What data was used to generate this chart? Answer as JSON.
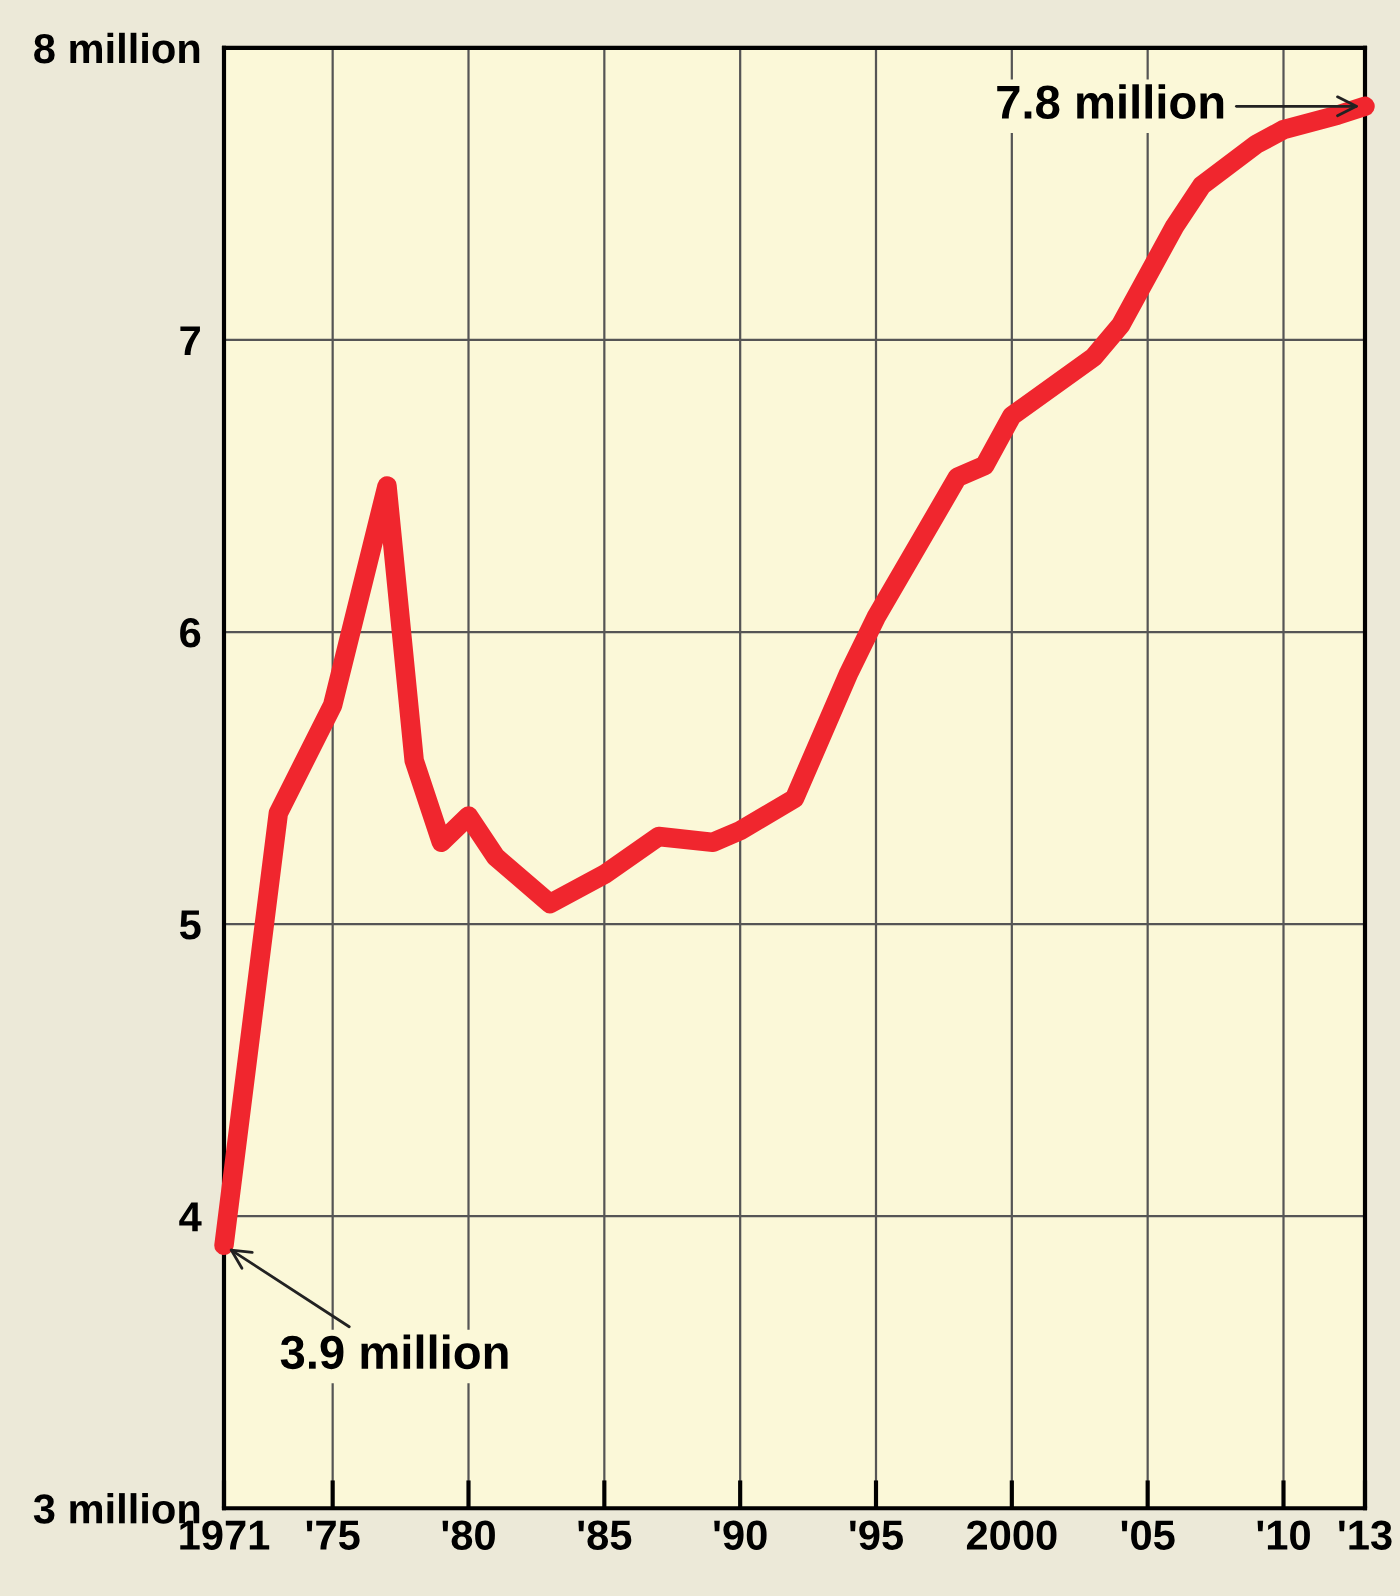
{
  "chart_data": {
    "type": "line",
    "x": [
      1971,
      1973,
      1975,
      1977,
      1978,
      1979,
      1980,
      1981,
      1983,
      1985,
      1987,
      1989,
      1990,
      1992,
      1994,
      1995,
      1998,
      1999,
      2000,
      2003,
      2004,
      2006,
      2007,
      2009,
      2010,
      2012,
      2013
    ],
    "series": [
      {
        "color": "#f0262e",
        "values": [
          3.9,
          5.38,
          5.75,
          6.5,
          5.56,
          5.28,
          5.37,
          5.23,
          5.07,
          5.17,
          5.3,
          5.28,
          5.32,
          5.43,
          5.86,
          6.05,
          6.53,
          6.57,
          6.74,
          6.94,
          7.05,
          7.39,
          7.53,
          7.67,
          7.72,
          7.77,
          7.8
        ]
      }
    ],
    "xlim": [
      1971,
      2013
    ],
    "xticks": [
      {
        "value": 1971,
        "label": "1971"
      },
      {
        "value": 1975,
        "label": "'75"
      },
      {
        "value": 1980,
        "label": "'80"
      },
      {
        "value": 1985,
        "label": "'85"
      },
      {
        "value": 1990,
        "label": "'90"
      },
      {
        "value": 1995,
        "label": "'95"
      },
      2000,
      {
        "value": 2005,
        "label": "'05"
      },
      {
        "value": 2010,
        "label": "'10"
      },
      {
        "value": 2013,
        "label": "'13"
      }
    ],
    "ylim": [
      3,
      8
    ],
    "yticks": [
      {
        "value": 3,
        "label": "3 million"
      },
      4,
      5,
      6,
      7,
      {
        "value": 8,
        "label": "8 million"
      }
    ],
    "grid": true,
    "marker": "none",
    "line_style": "solid",
    "legend": false,
    "annotations": [
      {
        "text": "3.9 million",
        "x": 1971,
        "y": 3.9
      },
      {
        "text": "7.8 million",
        "x": 2013,
        "y": 7.8
      }
    ]
  }
}
